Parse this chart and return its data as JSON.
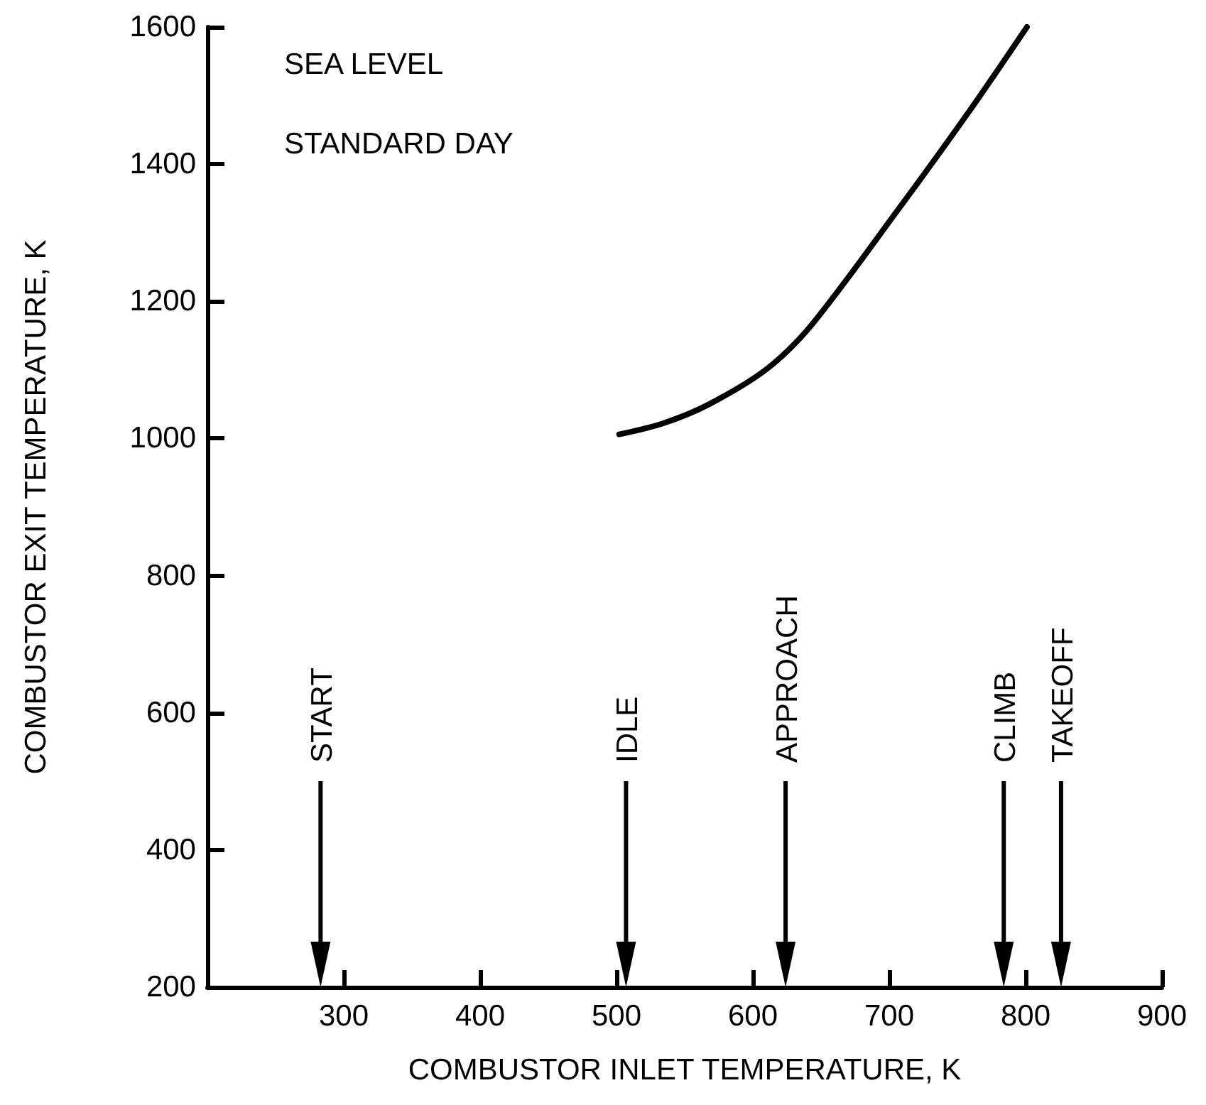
{
  "chart_data": {
    "type": "line",
    "xlabel": "COMBUSTOR INLET TEMPERATURE, K",
    "ylabel": "COMBUSTOR EXIT TEMPERATURE, K",
    "x": [
      502,
      534,
      567,
      610,
      642,
      707,
      759,
      801
    ],
    "series": [
      {
        "color": "#000000",
        "values": [
          1006,
          1022,
          1049,
          1101,
          1163,
          1335,
          1478,
          1600
        ]
      }
    ],
    "xlim": [
      200,
      900
    ],
    "xticks": [
      300,
      400,
      500,
      600,
      700,
      800,
      900
    ],
    "ylim": [
      200,
      1600
    ],
    "yticks": [
      200,
      400,
      600,
      800,
      1000,
      1200,
      1400,
      1600
    ],
    "grid": false,
    "marker": "none",
    "line_style": "solid",
    "annotations": [
      "SEA LEVEL",
      "STANDARD DAY"
    ],
    "ref_lines": [
      {
        "axis": "x",
        "value": 283,
        "label": "START"
      },
      {
        "axis": "x",
        "value": 507,
        "label": "IDLE"
      },
      {
        "axis": "x",
        "value": 624,
        "label": "APPROACH"
      },
      {
        "axis": "x",
        "value": 784,
        "label": "CLIMB"
      },
      {
        "axis": "x",
        "value": 826,
        "label": "TAKEOFF"
      }
    ]
  }
}
